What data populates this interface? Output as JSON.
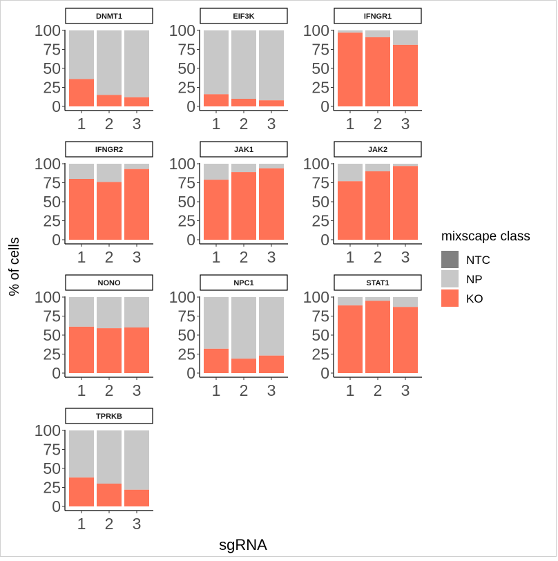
{
  "chart_data": {
    "type": "bar",
    "stacked": true,
    "categories": [
      "1",
      "2",
      "3"
    ],
    "xlabel": "sgRNA",
    "ylabel": "% of cells",
    "ylim": [
      0,
      100
    ],
    "yticks": [
      "0",
      "25",
      "50",
      "75",
      "100"
    ],
    "grid": false,
    "legend": {
      "title": "mixscape class",
      "position": "right",
      "entries": [
        {
          "name": "NTC",
          "color": "#808080"
        },
        {
          "name": "NP",
          "color": "#c8c8c8"
        },
        {
          "name": "KO",
          "color": "#ff7256"
        }
      ]
    },
    "colors": {
      "KO": "#ff7256",
      "NP": "#c8c8c8"
    },
    "panels": [
      {
        "title": "DNMT1",
        "series": [
          {
            "name": "KO",
            "values": [
              36,
              15,
              12
            ]
          },
          {
            "name": "NP",
            "values": [
              64,
              85,
              88
            ]
          }
        ]
      },
      {
        "title": "EIF3K",
        "series": [
          {
            "name": "KO",
            "values": [
              16,
              10,
              8
            ]
          },
          {
            "name": "NP",
            "values": [
              84,
              90,
              92
            ]
          }
        ]
      },
      {
        "title": "IFNGR1",
        "series": [
          {
            "name": "KO",
            "values": [
              97,
              91,
              81
            ]
          },
          {
            "name": "NP",
            "values": [
              3,
              9,
              19
            ]
          }
        ]
      },
      {
        "title": "IFNGR2",
        "series": [
          {
            "name": "KO",
            "values": [
              80,
              76,
              93
            ]
          },
          {
            "name": "NP",
            "values": [
              20,
              24,
              7
            ]
          }
        ]
      },
      {
        "title": "JAK1",
        "series": [
          {
            "name": "KO",
            "values": [
              79,
              89,
              94
            ]
          },
          {
            "name": "NP",
            "values": [
              21,
              11,
              6
            ]
          }
        ]
      },
      {
        "title": "JAK2",
        "series": [
          {
            "name": "KO",
            "values": [
              77,
              90,
              97
            ]
          },
          {
            "name": "NP",
            "values": [
              23,
              10,
              3
            ]
          }
        ]
      },
      {
        "title": "NONO",
        "series": [
          {
            "name": "KO",
            "values": [
              61,
              59,
              60
            ]
          },
          {
            "name": "NP",
            "values": [
              39,
              41,
              40
            ]
          }
        ]
      },
      {
        "title": "NPC1",
        "series": [
          {
            "name": "KO",
            "values": [
              32,
              19,
              23
            ]
          },
          {
            "name": "NP",
            "values": [
              68,
              81,
              77
            ]
          }
        ]
      },
      {
        "title": "STAT1",
        "series": [
          {
            "name": "KO",
            "values": [
              89,
              95,
              87
            ]
          },
          {
            "name": "NP",
            "values": [
              11,
              5,
              13
            ]
          }
        ]
      },
      {
        "title": "TPRKB",
        "series": [
          {
            "name": "KO",
            "values": [
              38,
              30,
              22
            ]
          },
          {
            "name": "NP",
            "values": [
              62,
              70,
              78
            ]
          }
        ]
      }
    ]
  }
}
